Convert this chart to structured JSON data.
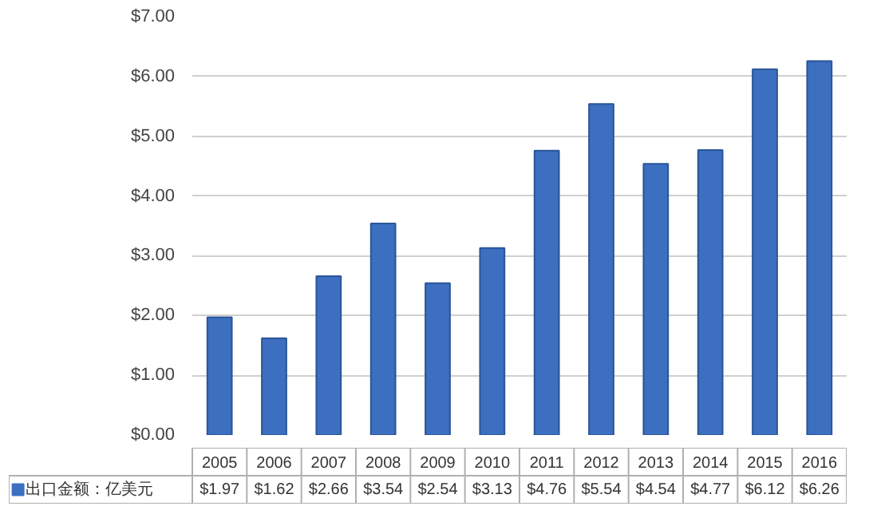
{
  "chart_data": {
    "type": "bar",
    "categories": [
      "2005",
      "2006",
      "2007",
      "2008",
      "2009",
      "2010",
      "2011",
      "2012",
      "2013",
      "2014",
      "2015",
      "2016"
    ],
    "series": [
      {
        "name": "出口金额：亿美元",
        "color": "#3c6fc0",
        "values": [
          1.97,
          1.62,
          2.66,
          3.54,
          2.54,
          3.13,
          4.76,
          5.54,
          4.54,
          4.77,
          6.12,
          6.26
        ],
        "value_labels": [
          "$1.97",
          "$1.62",
          "$2.66",
          "$3.54",
          "$2.54",
          "$3.13",
          "$4.76",
          "$5.54",
          "$4.54",
          "$4.77",
          "$6.12",
          "$6.26"
        ]
      }
    ],
    "ylim": [
      0,
      7
    ],
    "yticks": [
      {
        "value": 0,
        "label": "$0.00"
      },
      {
        "value": 1,
        "label": "$1.00"
      },
      {
        "value": 2,
        "label": "$2.00"
      },
      {
        "value": 3,
        "label": "$3.00"
      },
      {
        "value": 4,
        "label": "$4.00"
      },
      {
        "value": 5,
        "label": "$5.00"
      },
      {
        "value": 6,
        "label": "$6.00"
      },
      {
        "value": 7,
        "label": "$7.00"
      }
    ],
    "grid": "y",
    "legend": "bottom"
  }
}
